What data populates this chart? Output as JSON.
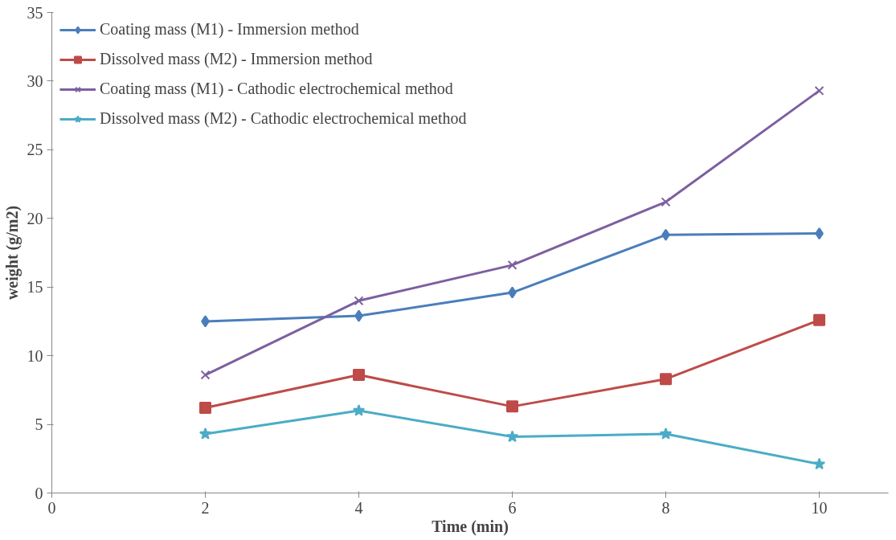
{
  "chart_data": {
    "type": "line",
    "xlabel": "Time (min)",
    "ylabel": "weight (g/m2)",
    "x": [
      2,
      4,
      6,
      8,
      10
    ],
    "series": [
      {
        "name": "Coating mass (M1) - Immersion method",
        "color": "#4a7ebb",
        "marker": "diamond",
        "values": [
          12.5,
          12.9,
          14.6,
          18.8,
          18.9
        ]
      },
      {
        "name": "Dissolved mass (M2) - Immersion method",
        "color": "#be4b48",
        "marker": "square",
        "values": [
          6.2,
          8.6,
          6.3,
          8.3,
          12.6
        ]
      },
      {
        "name": "Coating mass (M1) - Cathodic electrochemical method",
        "color": "#7d5fa0",
        "marker": "cross",
        "values": [
          8.6,
          14.0,
          16.6,
          21.2,
          29.3
        ]
      },
      {
        "name": "Dissolved mass (M2) - Cathodic electrochemical method",
        "color": "#4bacc6",
        "marker": "star",
        "values": [
          4.3,
          6.0,
          4.1,
          4.3,
          2.1
        ]
      }
    ],
    "xlim": [
      0,
      10.9
    ],
    "xticks": [
      0,
      2,
      4,
      6,
      8,
      10
    ],
    "ylim": [
      0,
      35
    ],
    "yticks": [
      0,
      5,
      10,
      15,
      20,
      25,
      30,
      35
    ],
    "grid": false,
    "legend": "top left",
    "line_style": "solid"
  }
}
